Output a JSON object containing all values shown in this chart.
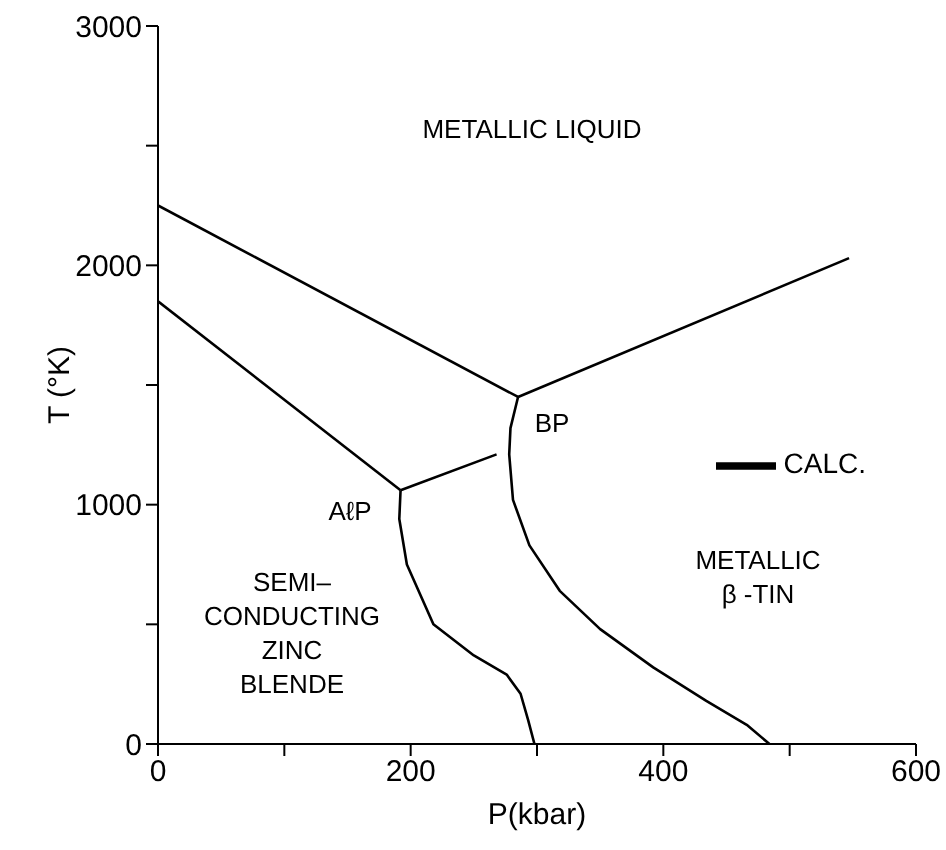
{
  "chart_data": {
    "type": "line",
    "xlabel": "P(kbar)",
    "ylabel": "T (°K)",
    "xlim": [
      0,
      600
    ],
    "ylim": [
      0,
      3000
    ],
    "xticks": [
      0,
      {
        "value": 100,
        "label": null
      },
      200,
      {
        "value": 300,
        "label": null
      },
      400,
      {
        "value": 500,
        "label": null
      },
      600
    ],
    "yticks": [
      0,
      {
        "value": 500,
        "label": null
      },
      1000,
      {
        "value": 1500,
        "label": null
      },
      2000,
      {
        "value": 2500,
        "label": null
      },
      3000
    ],
    "legend": "right",
    "marker": "none",
    "line_style": "solid",
    "series": [
      {
        "name": "CALC.",
        "color": "#000000",
        "x": [
          0,
          285
        ],
        "values": [
          2250,
          1450
        ]
      },
      {
        "color": "#000000",
        "x": [
          285,
          547
        ],
        "values": [
          1450,
          2030
        ]
      },
      {
        "color": "#000000",
        "x": [
          0,
          192
        ],
        "values": [
          1850,
          1060
        ]
      },
      {
        "color": "#000000",
        "x": [
          192,
          268
        ],
        "values": [
          1060,
          1210
        ]
      },
      {
        "color": "#000000",
        "x": [
          192,
          191,
          197,
          218,
          250,
          276,
          287,
          293,
          298
        ],
        "values": [
          1060,
          940,
          750,
          500,
          370,
          290,
          210,
          100,
          0
        ]
      },
      {
        "color": "#000000",
        "x": [
          285,
          279,
          278,
          281,
          294,
          318,
          350,
          392,
          434,
          466,
          484
        ],
        "values": [
          1450,
          1320,
          1210,
          1020,
          830,
          640,
          480,
          320,
          180,
          80,
          0
        ]
      }
    ],
    "annotations": [
      "METALLIC LIQUID",
      "BP",
      "AℓP",
      "SEMI–\nCONDUCTING\nZINC\nBLENDE",
      "METALLIC\nβ -TIN"
    ]
  }
}
